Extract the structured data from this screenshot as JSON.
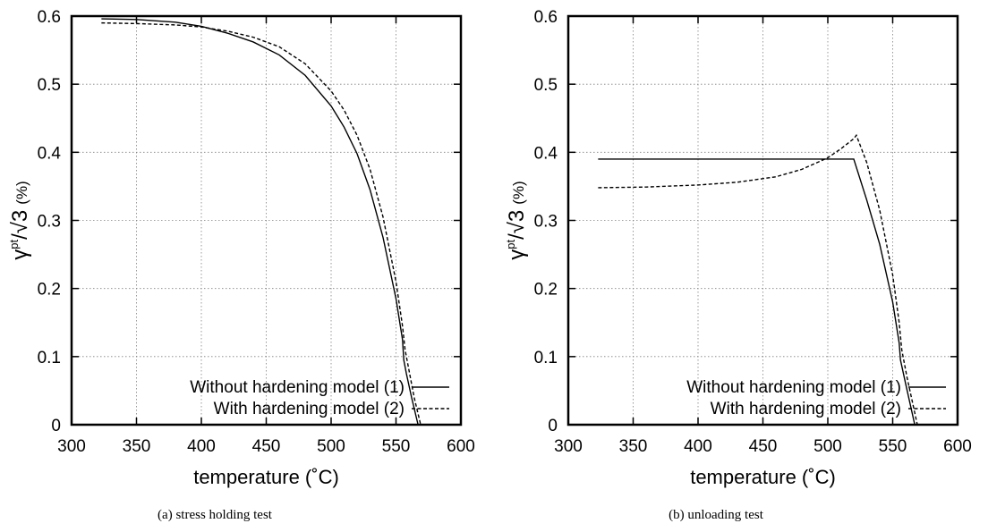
{
  "chart_data": [
    {
      "type": "line",
      "panel": "a",
      "caption": "(a)  stress holding test",
      "xlabel": "temperature (˚C)",
      "ylabel": {
        "symbol": "γ",
        "sup": "pt",
        "rest": "/√3",
        "unit": "(%)"
      },
      "xlim": [
        300,
        600
      ],
      "ylim": [
        0,
        0.6
      ],
      "xticks": [
        "300",
        "350",
        "400",
        "450",
        "500",
        "550",
        "600"
      ],
      "yticks": [
        "0",
        "0.1",
        "0.2",
        "0.3",
        "0.4",
        "0.5",
        "0.6"
      ],
      "grid": true,
      "legend_position": "bottom-right",
      "series": [
        {
          "name": "Without hardening model (1)",
          "style": "solid",
          "color": "#000000",
          "x": [
            323,
            350,
            380,
            400,
            420,
            440,
            460,
            480,
            500,
            510,
            520,
            530,
            540,
            550,
            555,
            556,
            558,
            562,
            567
          ],
          "y": [
            0.596,
            0.595,
            0.591,
            0.585,
            0.575,
            0.562,
            0.543,
            0.513,
            0.468,
            0.437,
            0.398,
            0.345,
            0.275,
            0.185,
            0.125,
            0.095,
            0.075,
            0.04,
            0.0
          ]
        },
        {
          "name": "With hardening model (2)",
          "style": "dashed",
          "color": "#000000",
          "x": [
            323,
            350,
            380,
            400,
            420,
            440,
            460,
            480,
            500,
            510,
            520,
            530,
            540,
            550,
            555,
            557,
            560,
            564,
            569
          ],
          "y": [
            0.59,
            0.589,
            0.587,
            0.584,
            0.578,
            0.569,
            0.555,
            0.53,
            0.49,
            0.462,
            0.425,
            0.375,
            0.305,
            0.21,
            0.145,
            0.11,
            0.08,
            0.04,
            0.0
          ]
        }
      ]
    },
    {
      "type": "line",
      "panel": "b",
      "caption": "(b)  unloading test",
      "xlabel": "temperature (˚C)",
      "ylabel": {
        "symbol": "γ",
        "sup": "pt",
        "rest": "/√3",
        "unit": "(%)"
      },
      "xlim": [
        300,
        600
      ],
      "ylim": [
        0,
        0.6
      ],
      "xticks": [
        "300",
        "350",
        "400",
        "450",
        "500",
        "550",
        "600"
      ],
      "yticks": [
        "0",
        "0.1",
        "0.2",
        "0.3",
        "0.4",
        "0.5",
        "0.6"
      ],
      "grid": true,
      "legend_position": "bottom-right",
      "series": [
        {
          "name": "Without hardening model (1)",
          "style": "solid",
          "color": "#000000",
          "x": [
            323,
            400,
            500,
            520,
            530,
            540,
            550,
            555,
            556,
            560,
            567
          ],
          "y": [
            0.39,
            0.39,
            0.39,
            0.39,
            0.33,
            0.265,
            0.18,
            0.12,
            0.095,
            0.06,
            0.0
          ]
        },
        {
          "name": "With hardening model (2)",
          "style": "dashed",
          "color": "#000000",
          "x": [
            323,
            360,
            400,
            430,
            460,
            480,
            500,
            510,
            520,
            522,
            530,
            540,
            550,
            555,
            557,
            561,
            569
          ],
          "y": [
            0.348,
            0.349,
            0.352,
            0.356,
            0.364,
            0.375,
            0.392,
            0.405,
            0.42,
            0.425,
            0.385,
            0.315,
            0.22,
            0.15,
            0.11,
            0.07,
            0.0
          ]
        }
      ]
    }
  ]
}
